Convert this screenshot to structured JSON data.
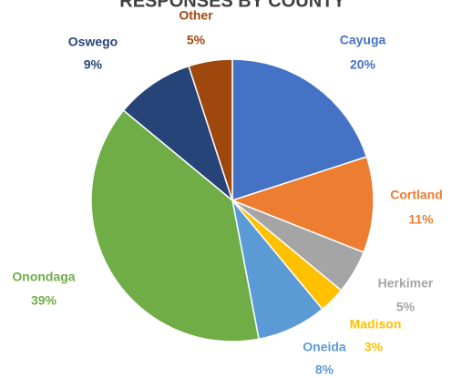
{
  "chart_data": {
    "type": "pie",
    "title": "RESPONSES BY COUNTY",
    "categories": [
      "Cayuga",
      "Cortland",
      "Herkimer",
      "Madison",
      "Oneida",
      "Onondaga",
      "Oswego",
      "Other"
    ],
    "values": [
      20,
      11,
      5,
      3,
      8,
      39,
      9,
      5
    ],
    "value_labels": [
      "20%",
      "11%",
      "5%",
      "3%",
      "8%",
      "39%",
      "9%",
      "5%"
    ],
    "colors": [
      "#4472c4",
      "#ed7d31",
      "#a5a5a5",
      "#ffc000",
      "#5b9bd5",
      "#70ad47",
      "#264478",
      "#9e480e"
    ]
  }
}
